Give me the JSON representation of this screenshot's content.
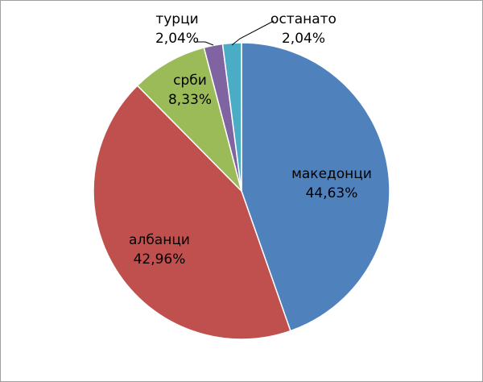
{
  "chart_data": {
    "type": "pie",
    "categories": [
      "македонци",
      "албанци",
      "срби",
      "турци",
      "останато"
    ],
    "values": [
      44.63,
      42.96,
      8.33,
      2.04,
      2.04
    ],
    "value_labels": [
      "44,63%",
      "42,96%",
      "8,33%",
      "2,04%",
      "2,04%"
    ],
    "colors": [
      "#4f81bd",
      "#c0504d",
      "#9bbb59",
      "#8064a2",
      "#4bacc6"
    ]
  }
}
